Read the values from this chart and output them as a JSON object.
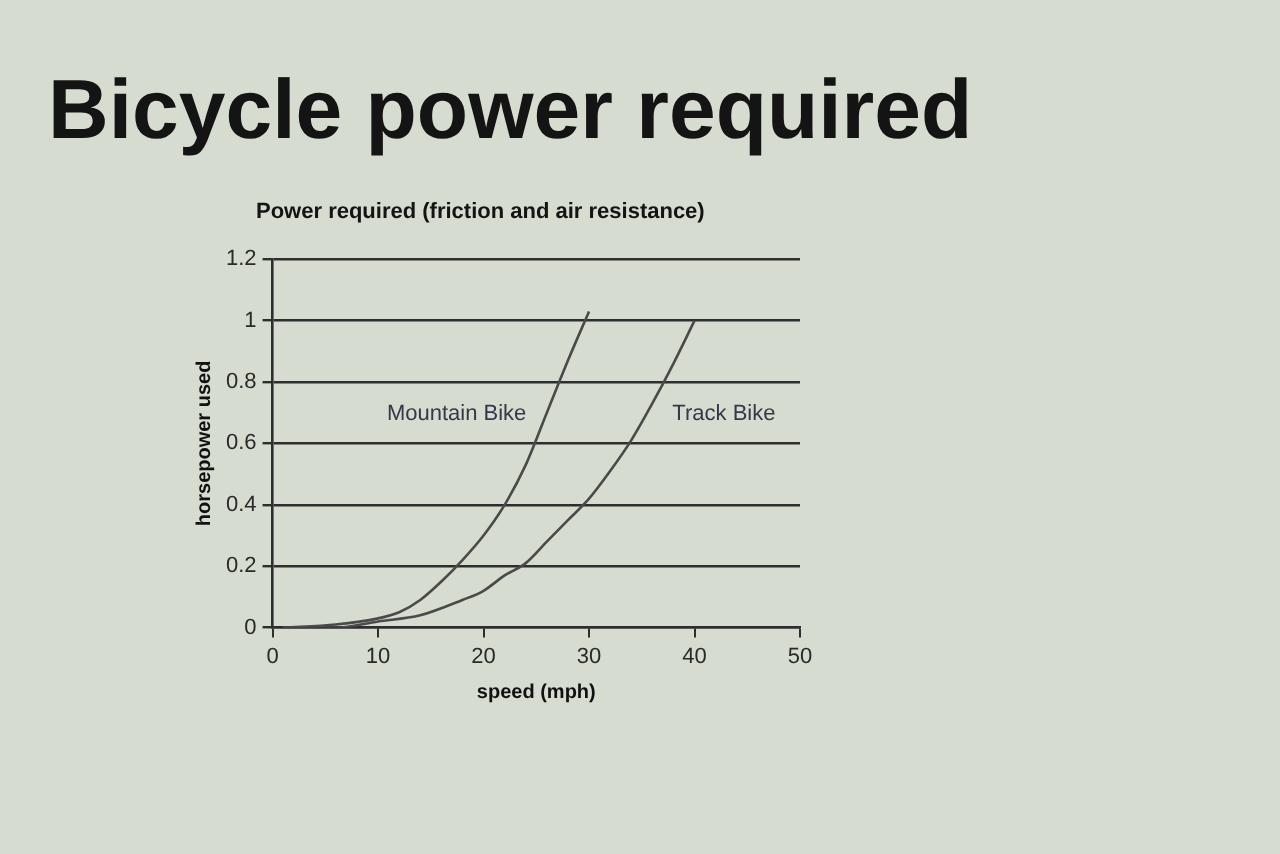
{
  "chart_data": {
    "type": "line",
    "title": "Bicycle power required",
    "subtitle": "Power required (friction and air resistance)",
    "xlabel": "speed (mph)",
    "ylabel": "horsepower used",
    "series": [
      {
        "name": "Mountain Bike",
        "color": "#4a4a4a",
        "x": [
          1,
          6,
          10,
          12,
          14,
          16,
          18,
          20,
          22,
          24,
          26,
          28,
          30
        ],
        "values": [
          0,
          0.01,
          0.03,
          0.05,
          0.09,
          0.15,
          0.22,
          0.3,
          0.4,
          0.53,
          0.7,
          0.87,
          1.03
        ]
      },
      {
        "name": "Track Bike",
        "color": "#4a4a4a",
        "x": [
          1,
          6,
          10,
          14,
          18,
          20,
          22,
          24,
          26,
          28,
          30,
          32,
          34,
          36,
          38,
          40
        ],
        "values": [
          0,
          0,
          0.02,
          0.04,
          0.09,
          0.12,
          0.17,
          0.21,
          0.28,
          0.35,
          0.42,
          0.51,
          0.61,
          0.73,
          0.86,
          1.0
        ]
      }
    ],
    "xlim": [
      0,
      50
    ],
    "xticks": [
      0,
      10,
      20,
      30,
      40,
      50
    ],
    "ylim": [
      0,
      1.2
    ],
    "yticks": [
      0,
      0.2,
      0.4,
      0.6,
      0.8,
      1,
      1.2
    ],
    "grid": "y",
    "marker": "none",
    "line_style": "solid"
  }
}
